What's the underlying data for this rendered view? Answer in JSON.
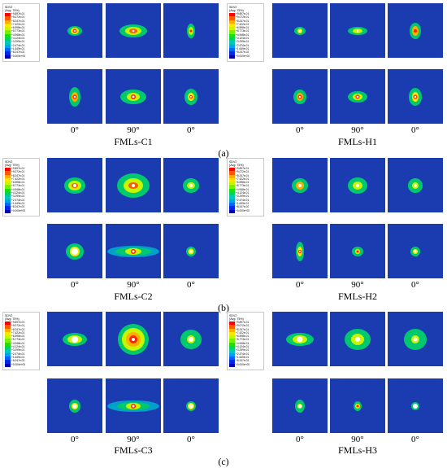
{
  "legend": {
    "variable": "SDV2",
    "average": "(Avg: 75%)",
    "ticks": [
      "+9.897e-01",
      "+9.072e-01",
      "+8.247e-01",
      "+7.422e-01",
      "+6.598e-01",
      "+5.773e-01",
      "+4.948e-01",
      "+4.124e-01",
      "+3.299e-01",
      "+2.474e-01",
      "+1.649e-01",
      "+8.247e-02",
      "+0.000e+00"
    ],
    "colors": [
      "#ff0000",
      "#ff5a00",
      "#ffae00",
      "#ffe600",
      "#c8f500",
      "#78f000",
      "#1ee000",
      "#00d25a",
      "#00c8b4",
      "#00a0f0",
      "#0064ff",
      "#0028e6",
      "#0000b4"
    ]
  },
  "angles": {
    "a": "0°",
    "b": "90°",
    "c": "0°"
  },
  "captions": {
    "C1": "FMLs-C1",
    "H1": "FMLs-H1",
    "C2": "FMLs-C2",
    "H2": "FMLs-H2",
    "C3": "FMLs-C3",
    "H3": "FMLs-H3"
  },
  "subfigs": {
    "a": "(a)",
    "b": "(b)",
    "c": "(c)"
  }
}
